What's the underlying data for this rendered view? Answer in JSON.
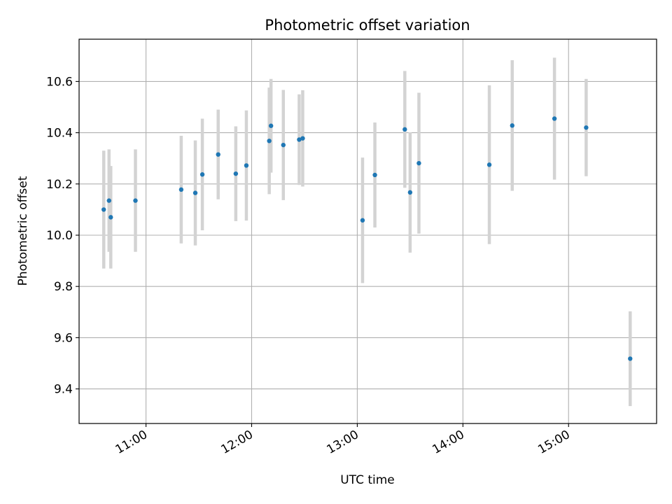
{
  "chart_data": {
    "type": "scatter",
    "title": "Photometric offset variation",
    "xlabel": "UTC time",
    "ylabel": "Photometric offset",
    "grid": true,
    "xlim": [
      "10:22",
      "15:50"
    ],
    "ylim": [
      9.265,
      10.765
    ],
    "x_ticks": [
      "11:00",
      "12:00",
      "13:00",
      "14:00",
      "15:00"
    ],
    "y_ticks": [
      "9.4",
      "9.6",
      "9.8",
      "10.0",
      "10.2",
      "10.4",
      "10.6"
    ],
    "series": [
      {
        "marker_color": "#1f77b4",
        "errorbar_color": "#d3d3d3",
        "points": [
          {
            "x": "10:36",
            "y": 10.1,
            "err": 0.23
          },
          {
            "x": "10:39",
            "y": 10.135,
            "err": 0.2
          },
          {
            "x": "10:40",
            "y": 10.07,
            "err": 0.2
          },
          {
            "x": "10:54",
            "y": 10.135,
            "err": 0.2
          },
          {
            "x": "11:20",
            "y": 10.178,
            "err": 0.21
          },
          {
            "x": "11:28",
            "y": 10.165,
            "err": 0.205
          },
          {
            "x": "11:32",
            "y": 10.237,
            "err": 0.218
          },
          {
            "x": "11:41",
            "y": 10.315,
            "err": 0.175
          },
          {
            "x": "11:51",
            "y": 10.24,
            "err": 0.185
          },
          {
            "x": "11:57",
            "y": 10.272,
            "err": 0.215
          },
          {
            "x": "12:10",
            "y": 10.368,
            "err": 0.208
          },
          {
            "x": "12:11",
            "y": 10.427,
            "err": 0.183
          },
          {
            "x": "12:18",
            "y": 10.352,
            "err": 0.215
          },
          {
            "x": "12:27",
            "y": 10.373,
            "err": 0.177
          },
          {
            "x": "12:29",
            "y": 10.378,
            "err": 0.188
          },
          {
            "x": "13:03",
            "y": 10.058,
            "err": 0.245
          },
          {
            "x": "13:10",
            "y": 10.235,
            "err": 0.205
          },
          {
            "x": "13:27",
            "y": 10.413,
            "err": 0.228
          },
          {
            "x": "13:30",
            "y": 10.167,
            "err": 0.235
          },
          {
            "x": "13:35",
            "y": 10.281,
            "err": 0.275
          },
          {
            "x": "14:15",
            "y": 10.275,
            "err": 0.31
          },
          {
            "x": "14:28",
            "y": 10.428,
            "err": 0.255
          },
          {
            "x": "14:52",
            "y": 10.455,
            "err": 0.238
          },
          {
            "x": "15:10",
            "y": 10.42,
            "err": 0.19
          },
          {
            "x": "15:35",
            "y": 9.518,
            "err": 0.185
          }
        ]
      }
    ]
  }
}
